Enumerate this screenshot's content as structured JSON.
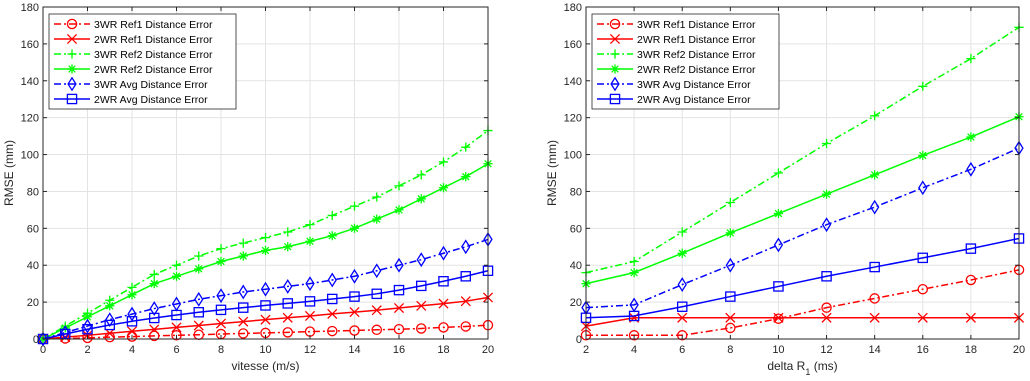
{
  "chart_data": [
    {
      "type": "line",
      "xlabel": "vitesse (m/s)",
      "ylabel": "RMSE (mm)",
      "xlim": [
        0,
        20
      ],
      "ylim": [
        0,
        180
      ],
      "xticks": [
        0,
        2,
        4,
        6,
        8,
        10,
        12,
        14,
        16,
        18,
        20
      ],
      "yticks": [
        0,
        20,
        40,
        60,
        80,
        100,
        120,
        140,
        160,
        180
      ],
      "grid": true,
      "legend_position": "top-left",
      "series": [
        {
          "name": "3WR Ref1 Distance Error",
          "color": "#ff0000",
          "dash": "dashdot",
          "marker": "circle",
          "x": [
            0,
            1,
            2,
            3,
            4,
            5,
            6,
            7,
            8,
            9,
            10,
            11,
            12,
            13,
            14,
            15,
            16,
            17,
            18,
            19,
            20
          ],
          "y": [
            0,
            0.3,
            0.6,
            1,
            1.3,
            1.7,
            2,
            2.3,
            2.7,
            3,
            3.3,
            3.6,
            4,
            4.3,
            4.6,
            5,
            5.3,
            5.7,
            6.3,
            6.8,
            7.5
          ]
        },
        {
          "name": "2WR Ref1 Distance Error",
          "color": "#ff0000",
          "dash": "solid",
          "marker": "x",
          "x": [
            0,
            1,
            2,
            3,
            4,
            5,
            6,
            7,
            8,
            9,
            10,
            11,
            12,
            13,
            14,
            15,
            16,
            17,
            18,
            19,
            20
          ],
          "y": [
            0,
            1,
            2,
            3.1,
            4.2,
            5.2,
            6.3,
            7.3,
            8.4,
            9.4,
            10.5,
            11.5,
            12.5,
            13.6,
            14.6,
            15.6,
            16.8,
            18,
            19.2,
            20.5,
            22.5
          ]
        },
        {
          "name": "3WR Ref2 Distance Error",
          "color": "#00ff00",
          "dash": "dashdot",
          "marker": "plus",
          "x": [
            0,
            1,
            2,
            3,
            4,
            5,
            6,
            7,
            8,
            9,
            10,
            11,
            12,
            13,
            14,
            15,
            16,
            17,
            18,
            19,
            20
          ],
          "y": [
            0,
            7,
            14,
            21,
            28,
            35,
            40,
            45,
            49,
            52,
            55,
            58,
            62,
            67,
            72,
            77,
            83,
            89,
            96,
            104,
            113
          ]
        },
        {
          "name": "2WR Ref2 Distance Error",
          "color": "#00ff00",
          "dash": "solid",
          "marker": "asterisk",
          "x": [
            0,
            1,
            2,
            3,
            4,
            5,
            6,
            7,
            8,
            9,
            10,
            11,
            12,
            13,
            14,
            15,
            16,
            17,
            18,
            19,
            20
          ],
          "y": [
            0,
            6,
            12,
            18,
            24,
            30,
            34,
            38,
            42,
            45,
            48,
            50,
            53,
            56,
            60,
            65,
            70,
            76,
            82,
            88,
            95
          ]
        },
        {
          "name": "3WR Avg Distance Error",
          "color": "#0000ff",
          "dash": "dashdot",
          "marker": "diamond",
          "x": [
            0,
            1,
            2,
            3,
            4,
            5,
            6,
            7,
            8,
            9,
            10,
            11,
            12,
            13,
            14,
            15,
            16,
            17,
            18,
            19,
            20
          ],
          "y": [
            0,
            3.5,
            7,
            10.5,
            13.5,
            16.5,
            19,
            21.5,
            23.5,
            25.5,
            27,
            28.5,
            30,
            32,
            34,
            37,
            40,
            43,
            46.5,
            50,
            54
          ]
        },
        {
          "name": "2WR Avg Distance Error",
          "color": "#0000ff",
          "dash": "solid",
          "marker": "square",
          "x": [
            0,
            1,
            2,
            3,
            4,
            5,
            6,
            7,
            8,
            9,
            10,
            11,
            12,
            13,
            14,
            15,
            16,
            17,
            18,
            19,
            20
          ],
          "y": [
            0,
            2.7,
            5.3,
            7.6,
            9.6,
            11.4,
            13,
            14.5,
            15.8,
            17,
            18.2,
            19.3,
            20.4,
            21.7,
            23,
            24.5,
            26.5,
            28.8,
            31.3,
            34,
            37
          ]
        }
      ]
    },
    {
      "type": "line",
      "xlabel": "delta R",
      "xlabel_subscript": "1",
      "xlabel_unit": " (ms)",
      "ylabel": "RMSE (mm)",
      "xlim": [
        2,
        20
      ],
      "ylim": [
        0,
        180
      ],
      "xticks": [
        2,
        4,
        6,
        8,
        10,
        12,
        14,
        16,
        18,
        20
      ],
      "yticks": [
        0,
        20,
        40,
        60,
        80,
        100,
        120,
        140,
        160,
        180
      ],
      "grid": true,
      "legend_position": "top-left",
      "series": [
        {
          "name": "3WR Ref1 Distance Error",
          "color": "#ff0000",
          "dash": "dashdot",
          "marker": "circle",
          "x": [
            2,
            4,
            6,
            8,
            10,
            12,
            14,
            16,
            18,
            20
          ],
          "y": [
            2,
            2,
            2,
            6,
            11,
            17,
            22,
            27,
            32,
            37.5
          ]
        },
        {
          "name": "2WR Ref1 Distance Error",
          "color": "#ff0000",
          "dash": "solid",
          "marker": "x",
          "x": [
            2,
            4,
            6,
            8,
            10,
            12,
            14,
            16,
            18,
            20
          ],
          "y": [
            7,
            11.5,
            11.5,
            11.5,
            11.5,
            11.5,
            11.5,
            11.5,
            11.5,
            11.5
          ]
        },
        {
          "name": "3WR Ref2 Distance Error",
          "color": "#00ff00",
          "dash": "dashdot",
          "marker": "plus",
          "x": [
            2,
            4,
            6,
            8,
            10,
            12,
            14,
            16,
            18,
            20
          ],
          "y": [
            36,
            42,
            58,
            74,
            90,
            106,
            121,
            137,
            152,
            169
          ]
        },
        {
          "name": "2WR Ref2 Distance Error",
          "color": "#00ff00",
          "dash": "solid",
          "marker": "asterisk",
          "x": [
            2,
            4,
            6,
            8,
            10,
            12,
            14,
            16,
            18,
            20
          ],
          "y": [
            30,
            36,
            46.5,
            57.5,
            68,
            78.5,
            89,
            99.5,
            109.5,
            120.5
          ]
        },
        {
          "name": "3WR Avg Distance Error",
          "color": "#0000ff",
          "dash": "dashdot",
          "marker": "diamond",
          "x": [
            2,
            4,
            6,
            8,
            10,
            12,
            14,
            16,
            18,
            20
          ],
          "y": [
            17,
            18.5,
            29.5,
            40,
            51,
            62,
            71.5,
            82,
            92,
            103.5
          ]
        },
        {
          "name": "2WR Avg Distance Error",
          "color": "#0000ff",
          "dash": "solid",
          "marker": "square",
          "x": [
            2,
            4,
            6,
            8,
            10,
            12,
            14,
            16,
            18,
            20
          ],
          "y": [
            11.5,
            12.5,
            17.5,
            23,
            28.5,
            34,
            39,
            44,
            49,
            54.5
          ]
        }
      ]
    }
  ]
}
